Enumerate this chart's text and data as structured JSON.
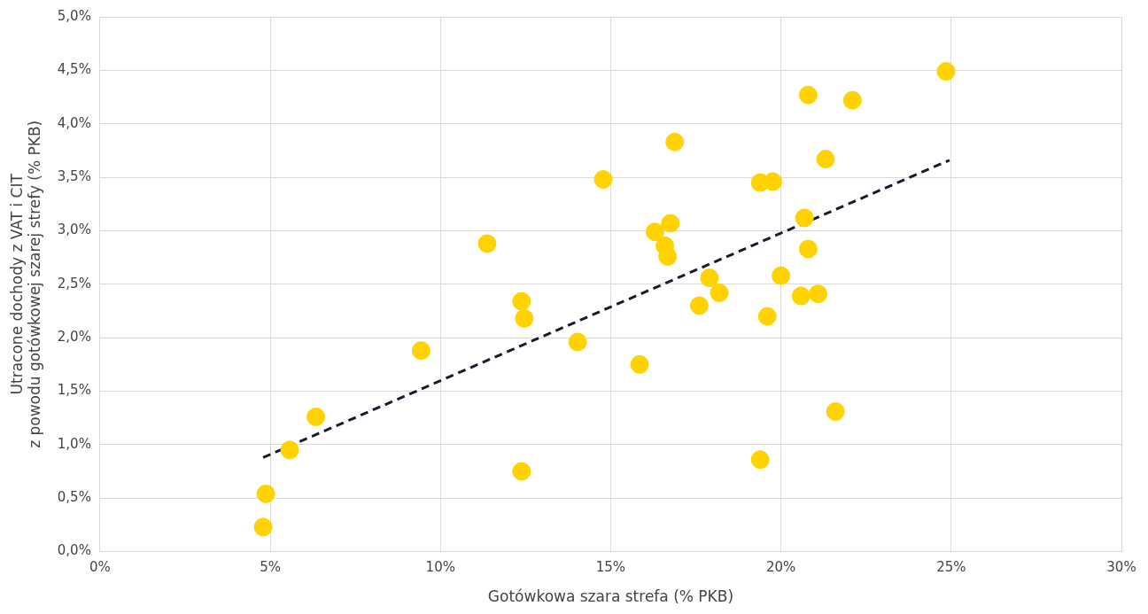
{
  "chart_data": {
    "type": "scatter",
    "xlabel": "Gotówkowa szara strefa (% PKB)",
    "ylabel": "Utracone dochody z VAT i CIT\nz powodu gotówkowej szarej strefy (% PKB)",
    "xlim": [
      0,
      30
    ],
    "xticks": [
      {
        "value": 0,
        "label": "0%"
      },
      {
        "value": 5,
        "label": "5%"
      },
      {
        "value": 10,
        "label": "10%"
      },
      {
        "value": 15,
        "label": "15%"
      },
      {
        "value": 20,
        "label": "20%"
      },
      {
        "value": 25,
        "label": "25%"
      },
      {
        "value": 30,
        "label": "30%"
      }
    ],
    "ylim": [
      0,
      5
    ],
    "yticks": [
      {
        "value": 0,
        "label": "0,0%"
      },
      {
        "value": 0.5,
        "label": "0,5%"
      },
      {
        "value": 1,
        "label": "1,0%"
      },
      {
        "value": 1.5,
        "label": "1,5%"
      },
      {
        "value": 2,
        "label": "2,0%"
      },
      {
        "value": 2.5,
        "label": "2,5%"
      },
      {
        "value": 3,
        "label": "3,0%"
      },
      {
        "value": 3.5,
        "label": "3,5%"
      },
      {
        "value": 4,
        "label": "4,0%"
      },
      {
        "value": 4.5,
        "label": "4,5%"
      },
      {
        "value": 5,
        "label": "5,0%"
      }
    ],
    "grid": true,
    "legend": false,
    "marker": "circle",
    "series": [
      {
        "color": "#ffd200",
        "x": [
          4.79,
          4.87,
          5.57,
          6.34,
          9.43,
          11.37,
          12.38,
          12.38,
          12.46,
          14.03,
          14.78,
          15.85,
          16.3,
          16.59,
          16.67,
          16.75,
          16.88,
          17.6,
          17.9,
          18.19,
          19.39,
          19.39,
          19.6,
          19.76,
          20.0,
          20.59,
          20.69,
          20.8,
          20.8,
          21.09,
          21.31,
          21.6,
          22.1,
          24.85
        ],
        "values": [
          0.23,
          0.54,
          0.95,
          1.26,
          1.88,
          2.88,
          2.34,
          0.75,
          2.18,
          1.96,
          3.48,
          1.75,
          2.99,
          2.86,
          2.76,
          3.07,
          3.83,
          2.3,
          2.56,
          2.42,
          3.45,
          0.86,
          2.2,
          3.46,
          2.58,
          2.39,
          3.12,
          2.83,
          4.27,
          2.41,
          3.67,
          1.31,
          4.22,
          4.49
        ]
      },
      {
        "type": "line",
        "color": "#1a1a2e",
        "line_style": "dashed",
        "marker": "none",
        "x": [
          4.79,
          24.95
        ],
        "values": [
          0.88,
          3.66
        ]
      }
    ]
  }
}
